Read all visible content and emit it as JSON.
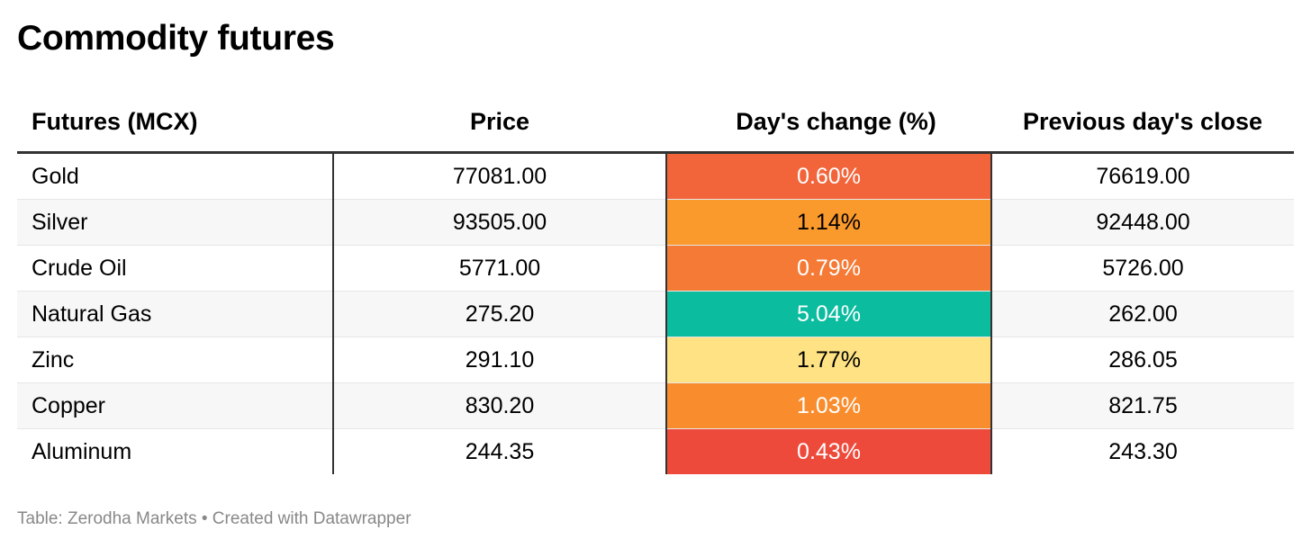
{
  "title": "Commodity futures",
  "source": "Table: Zerodha Markets • Created with Datawrapper",
  "chart_data": {
    "type": "table",
    "title": "Commodity futures",
    "columns": [
      "Futures (MCX)",
      "Price",
      "Day's change (%)",
      "Previous day's close"
    ],
    "rows": [
      {
        "name": "Gold",
        "price": "77081.00",
        "change": "0.60%",
        "prev": "76619.00",
        "change_color": "#f2643a",
        "change_text_color": "#ffffff"
      },
      {
        "name": "Silver",
        "price": "93505.00",
        "change": "1.14%",
        "prev": "92448.00",
        "change_color": "#fb9a2c",
        "change_text_color": "#000000"
      },
      {
        "name": "Crude Oil",
        "price": "5771.00",
        "change": "0.79%",
        "prev": "5726.00",
        "change_color": "#f47a36",
        "change_text_color": "#ffffff"
      },
      {
        "name": "Natural Gas",
        "price": "275.20",
        "change": "5.04%",
        "prev": "262.00",
        "change_color": "#0cbc9f",
        "change_text_color": "#ffffff"
      },
      {
        "name": "Zinc",
        "price": "291.10",
        "change": "1.77%",
        "prev": "286.05",
        "change_color": "#fee283",
        "change_text_color": "#000000"
      },
      {
        "name": "Copper",
        "price": "830.20",
        "change": "1.03%",
        "prev": "821.75",
        "change_color": "#f98d2d",
        "change_text_color": "#ffffff"
      },
      {
        "name": "Aluminum",
        "price": "244.35",
        "change": "0.43%",
        "prev": "243.30",
        "change_color": "#ee4a3c",
        "change_text_color": "#ffffff"
      }
    ]
  }
}
